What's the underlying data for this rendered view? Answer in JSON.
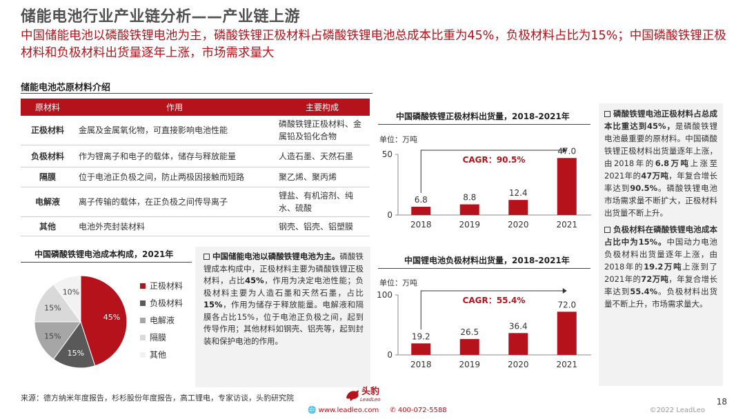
{
  "header": {
    "title": "储能电池行业产业链分析——产业链上游",
    "subtitle": "中国储能电池以磷酸铁锂电池为主，磷酸铁锂正极材料占磷酸铁锂电池总成本比重为45%，负极材料占比为15%；中国磷酸铁锂正极材料和负极材料出货量逐年上涨，市场需求量大"
  },
  "materials": {
    "section_title": "储能电池芯原材料介绍",
    "headers": [
      "原材料",
      "作用",
      "主要构成"
    ],
    "rows": [
      {
        "name": "正极材料",
        "role": "金属及金属氧化物，可直接影响电池性能",
        "composition": "磷酸铁锂正极材料、金属铅及铅化合物"
      },
      {
        "name": "负极材料",
        "role": "作为锂离子和电子的载体，储存与释放能量",
        "composition": "人造石墨、天然石墨"
      },
      {
        "name": "隔膜",
        "role": "位于电池正负极之间，防止两极因接触而短路",
        "composition": "聚乙烯、聚丙烯"
      },
      {
        "name": "电解液",
        "role": "离子传输的载体，在正负极之间传导离子",
        "composition": "锂盐、有机溶剂、纯水、硫酸"
      },
      {
        "name": "其他",
        "role": "电池外壳封装材料",
        "composition": "钢壳、铝壳、铝塑膜"
      }
    ]
  },
  "cost_pie": {
    "title": "中国磷酸铁锂电池成本构成，2021年",
    "slices": [
      {
        "label": "正极材料",
        "value": 45,
        "text": "45%",
        "color": "#b5121b"
      },
      {
        "label": "负极材料",
        "value": 15,
        "text": "15%",
        "color": "#595959"
      },
      {
        "label": "电解液",
        "value": 15,
        "text": "15%",
        "color": "#a6a6a6"
      },
      {
        "label": "隔膜",
        "value": 15,
        "text": "15%",
        "color": "#d9d9d9"
      },
      {
        "label": "其他",
        "value": 10,
        "text": "10%",
        "color": "#f2f2f2"
      }
    ]
  },
  "note_left": {
    "lead": "中国储能电池以磷酸铁锂电池为主。",
    "t1": "磷酸铁锂成本构成中，正极材料主要为磷酸铁锂正极材料，占比",
    "b1": "45%",
    "t2": "，作用为决定电池性能；负极材料主要为人造石墨和天然石墨，占比",
    "b2": "15%",
    "t3": "，作用为储存于释放能量。电解液和隔膜各占比15%，位于电池正负极之间，起到传导作用；其他材料如钢壳、铝壳等，起到封装和保护电池的作用。"
  },
  "chart_data": [
    {
      "type": "bar",
      "title": "中国磷酸铁锂正极材料出货量，2018-2021年",
      "unit": "单位：万吨",
      "categories": [
        "2018",
        "2019",
        "2020",
        "2021"
      ],
      "values": [
        6.8,
        8.8,
        12.4,
        47.0
      ],
      "value_labels": [
        "6.8",
        "8.8",
        "12.4",
        "47.0"
      ],
      "yticks": [
        "0",
        "50"
      ],
      "ylim": [
        0,
        50
      ],
      "annotation": "CAGR：90.5%",
      "color": "#b5121b"
    },
    {
      "type": "bar",
      "title": "中国锂电池负极材料出货量，2018-2021年",
      "unit": "单位：万吨",
      "categories": [
        "2018",
        "2019",
        "2020",
        "2021"
      ],
      "values": [
        19.2,
        26.5,
        36.4,
        72.0
      ],
      "value_labels": [
        "19.2",
        "26.5",
        "36.4",
        "72.0"
      ],
      "yticks": [
        "0",
        "100"
      ],
      "ylim": [
        0,
        100
      ],
      "annotation": "CAGR：55.4%",
      "color": "#b5121b"
    }
  ],
  "note_right": {
    "p1_lead": "磷酸铁锂电池正极材料占总成本比重达到45%，",
    "p1_t1": "是磷酸铁锂电池最重要的原材料。中国磷酸铁锂正极材料出货量逐年上涨，由2018年的",
    "p1_b1": "6.8万吨",
    "p1_t2": "上涨至2021年的",
    "p1_b2": "47万吨",
    "p1_t3": "，年复合增长率达到",
    "p1_b3": "90.5%",
    "p1_t4": "。磷酸铁锂电池市场需求量不断扩大，正极材料出货量不断上升。",
    "p2_lead": "负极材料在磷酸铁锂电池成本占比中为15%。",
    "p2_t1": "中国动力电池负极材料出货量逐年上涨，由2018年的",
    "p2_b1": "19.2万吨",
    "p2_t2": "上涨到了2021年的",
    "p2_b2": "72万吨",
    "p2_t3": "，年复合增长率达到",
    "p2_b3": "55.4%",
    "p2_t4": "。负极材料出货量不断上升，市场需求量大。"
  },
  "footer": {
    "source": "来源：德方纳米年度报告，杉杉股份年度报告，高工锂电，专家访谈，头豹研究院",
    "logo_text": "头豹",
    "logo_sub": "LeadLeo",
    "website": "www.leadleo.com",
    "phone": "400-072-5588",
    "copyright": "©2022 LeadLeo",
    "page": "18"
  }
}
